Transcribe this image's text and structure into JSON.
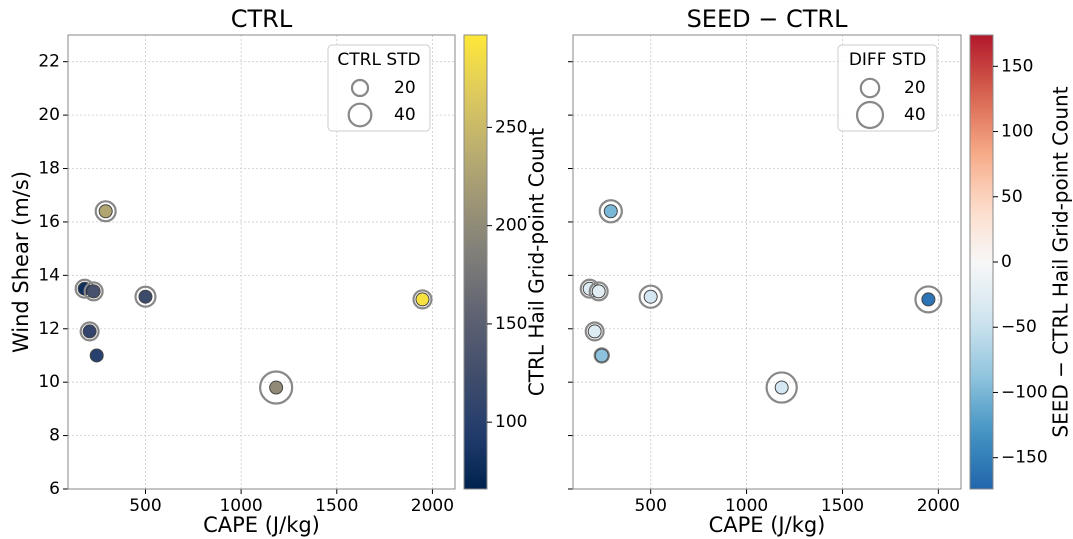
{
  "chart_data": [
    {
      "type": "scatter",
      "title": "CTRL",
      "x_label": "CAPE (J/kg)",
      "y_label": "Wind Shear (m/s)",
      "x": [
        182,
        229,
        208,
        245,
        292,
        500,
        1183,
        1948
      ],
      "y": [
        13.5,
        13.4,
        11.9,
        11.0,
        16.4,
        13.2,
        9.8,
        13.1
      ],
      "values": [
        80,
        130,
        110,
        100,
        230,
        120,
        200,
        290
      ],
      "std": [
        25,
        25,
        25,
        8,
        31,
        31,
        80,
        25
      ],
      "colormap": "cividis",
      "clim": [
        66,
        297
      ],
      "colorbar_ticks": [
        100,
        150,
        200,
        250
      ],
      "colorbar_label": "CTRL Hail Grid-point Count",
      "legend_title": "CTRL STD",
      "legend_sizes": [
        20,
        40
      ],
      "legend_loc": "upper right",
      "xlim": [
        95,
        2118
      ],
      "ylim": [
        6,
        23
      ],
      "xticks": [
        500,
        1000,
        1500,
        2000
      ],
      "yticks": [
        6,
        8,
        10,
        12,
        14,
        16,
        18,
        20,
        22
      ],
      "show_ytick_labels": true,
      "grid": true
    },
    {
      "type": "scatter",
      "title": "SEED − CTRL",
      "x_label": "CAPE (J/kg)",
      "x": [
        182,
        229,
        208,
        245,
        292,
        500,
        1183,
        1948
      ],
      "y": [
        13.5,
        13.4,
        11.9,
        11.0,
        16.4,
        13.2,
        9.8,
        13.1
      ],
      "values": [
        -30,
        -25,
        -30,
        -90,
        -100,
        -40,
        -40,
        -160
      ],
      "std": [
        19,
        19,
        19,
        12,
        29,
        29,
        54,
        40
      ],
      "colormap": "RdBu_r",
      "clim": [
        -174,
        174
      ],
      "colorbar_ticks": [
        {
          "value": -150,
          "label": "−150"
        },
        {
          "value": -100,
          "label": "−100"
        },
        {
          "value": -50,
          "label": "−50"
        },
        0,
        50,
        100,
        150
      ],
      "colorbar_label": "SEED − CTRL Hail Grid-point Count",
      "legend_title": "DIFF STD",
      "legend_sizes": [
        20,
        40
      ],
      "legend_loc": "upper right",
      "xlim": [
        95,
        2118
      ],
      "ylim": [
        6,
        23
      ],
      "xticks": [
        500,
        1000,
        1500,
        2000
      ],
      "yticks": [
        6,
        8,
        10,
        12,
        14,
        16,
        18,
        20,
        22
      ],
      "show_ytick_labels": false,
      "grid": true
    }
  ]
}
